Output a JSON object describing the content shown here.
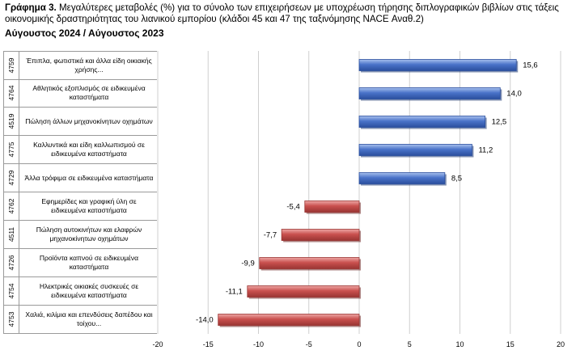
{
  "header": {
    "figure_label": "Γράφημα 3.",
    "title": "Μεγαλύτερες μεταβολές (%) για το σύνολο των επιχειρήσεων με υποχρέωση τήρησης διπλογραφικών βιβλίων στις τάξεις οικονομικής δραστηριότητας του λιανικού εμπορίου (κλάδοι 45 και 47 της ταξινόμησης NACE Αναθ.2)",
    "subtitle": "Αύγουστος 2024 / Αύγουστος 2023"
  },
  "colors": {
    "positive": "#4a73c9",
    "negative": "#c9504e",
    "grid": "#cfcfcf"
  },
  "chart_data": {
    "type": "bar",
    "orientation": "horizontal",
    "categories": [
      {
        "code": "4759",
        "label": "Έπιπλα, φωτιστικά και άλλα είδη οικιακής χρήσης..."
      },
      {
        "code": "4764",
        "label": "Αθλητικός εξοπλισμός σε ειδικευμένα καταστήματα"
      },
      {
        "code": "4519",
        "label": "Πώληση άλλων μηχανοκίνητων οχημάτων"
      },
      {
        "code": "4775",
        "label": "Καλλυντικά και είδη καλλωπισμού σε ειδικευμένα καταστήματα"
      },
      {
        "code": "4729",
        "label": "Άλλα τρόφιμα σε ειδικευμένα καταστήματα"
      },
      {
        "code": "4762",
        "label": "Εφημερίδες και γραφική ύλη σε ειδικευμένα καταστήματα"
      },
      {
        "code": "4511",
        "label": "Πώληση αυτοκινήτων και ελαφρών μηχανοκίνητων οχημάτων"
      },
      {
        "code": "4726",
        "label": "Προϊόντα καπνού σε ειδικευμένα καταστήματα"
      },
      {
        "code": "4754",
        "label": "Ηλεκτρικές οικιακές συσκευές σε ειδικευμένα καταστήματα"
      },
      {
        "code": "4753",
        "label": "Χαλιά, κιλίμια και επενδύσεις δαπέδου και τοίχου..."
      }
    ],
    "values": [
      15.6,
      14.0,
      12.5,
      11.2,
      8.5,
      -5.4,
      -7.7,
      -9.9,
      -11.1,
      -14.0
    ],
    "value_labels": [
      "15,6",
      "14,0",
      "12,5",
      "11,2",
      "8,5",
      "-5,4",
      "-7,7",
      "-9,9",
      "-11,1",
      "-14,0"
    ],
    "xlim": [
      -20,
      20
    ],
    "xticks": [
      -20,
      -15,
      -10,
      -5,
      0,
      5,
      10,
      15,
      20
    ],
    "grid": true,
    "legend": "none"
  }
}
